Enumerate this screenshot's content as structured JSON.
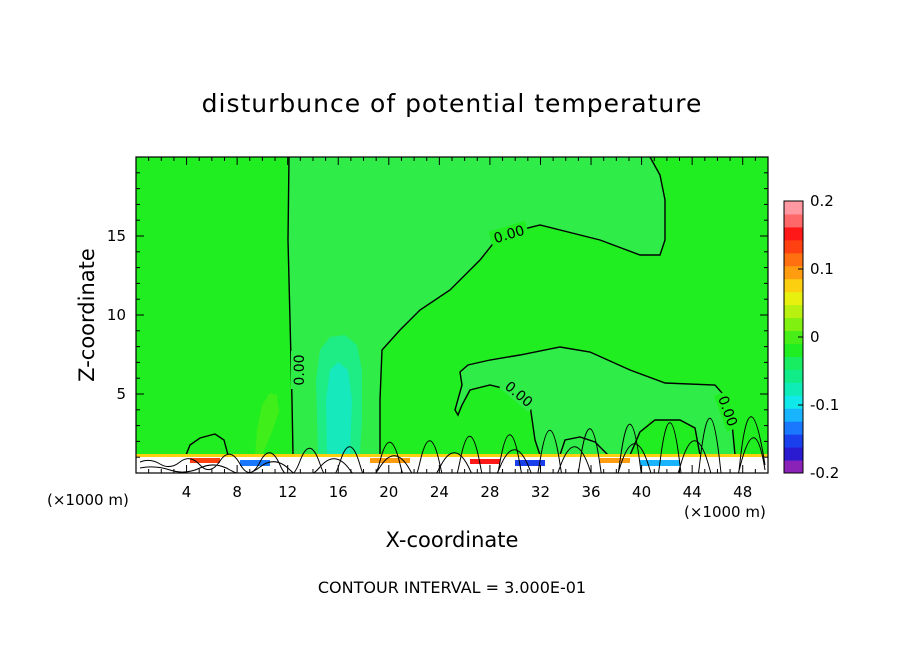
{
  "chart_data": {
    "type": "contour",
    "title": "disturbunce of potential temperature",
    "xlabel": "X-coordinate",
    "ylabel": "Z-coordinate",
    "x_unit": "(×1000 m)",
    "xlim": [
      0,
      50
    ],
    "ylim": [
      0,
      20
    ],
    "x_ticks": [
      "4",
      "8",
      "12",
      "16",
      "20",
      "24",
      "28",
      "32",
      "36",
      "40",
      "44",
      "48"
    ],
    "y_ticks": [
      "5",
      "10",
      "15"
    ],
    "contour_labels": [
      "0.00",
      "0.00",
      "0.00",
      "0.00"
    ],
    "contour_interval_text": "CONTOUR INTERVAL = 3.000E-01",
    "colorbar": {
      "min": -0.2,
      "max": 0.2,
      "tick_labels": [
        "0.2",
        "0.1",
        "0",
        "-0.1",
        "-0.2"
      ],
      "colors": [
        "#8a22b8",
        "#2a1ad0",
        "#1a40ee",
        "#1a78ff",
        "#18b4ff",
        "#10e8ea",
        "#10ecb8",
        "#10ec88",
        "#18ec60",
        "#20ee20",
        "#48ee18",
        "#80f010",
        "#b8f010",
        "#e8f010",
        "#fcd010",
        "#ff9c10",
        "#ff7010",
        "#ff4010",
        "#ff1818",
        "#ff6868",
        "#ff98a0"
      ]
    },
    "grid": false
  }
}
